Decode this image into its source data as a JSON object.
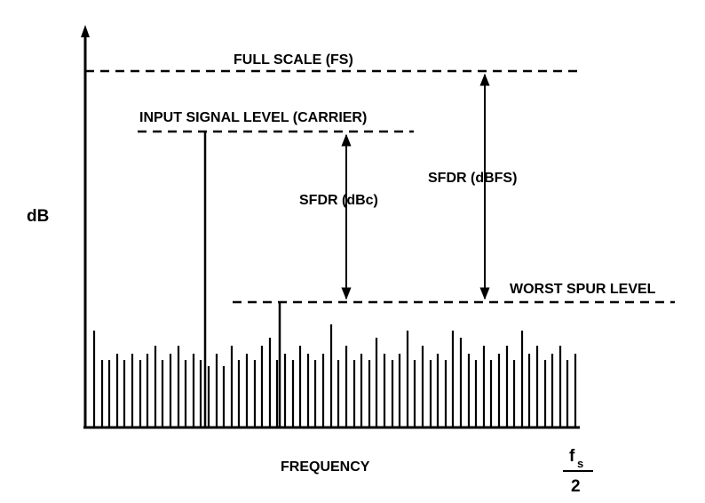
{
  "labels": {
    "y_axis": "dB",
    "x_axis": "FREQUENCY",
    "full_scale": "FULL SCALE (FS)",
    "input_signal": "INPUT SIGNAL LEVEL (CARRIER)",
    "sfdr_dbc": "SFDR (dBc)",
    "sfdr_dbfs": "SFDR (dBFS)",
    "worst_spur": "WORST SPUR LEVEL",
    "fs_numerator": "f",
    "fs_subscript": "s",
    "fs_denominator": "2"
  },
  "colors": {
    "ink": "#000000",
    "background": "#ffffff"
  }
}
